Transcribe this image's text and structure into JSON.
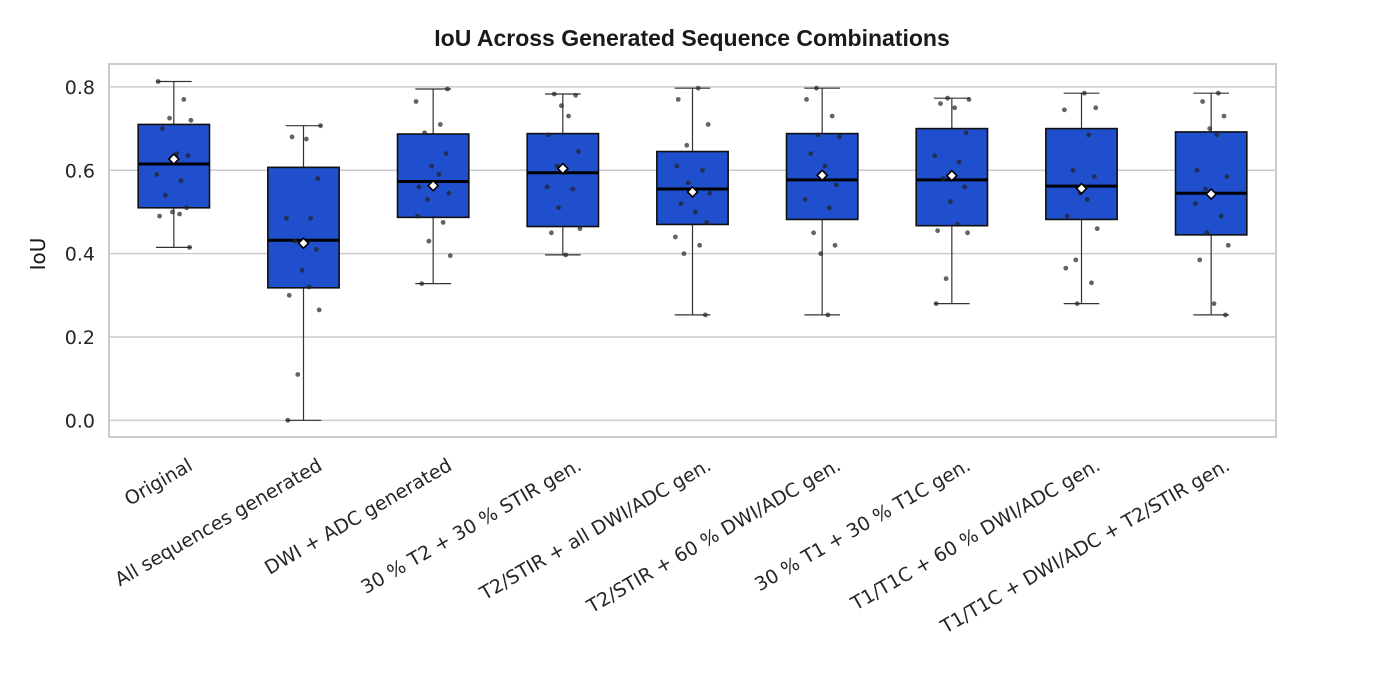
{
  "chart_data": {
    "type": "box",
    "title": "IoU Across Generated Sequence Combinations",
    "xlabel": "",
    "ylabel": "IoU",
    "ylim": [
      -0.04,
      0.855
    ],
    "yticks": [
      0.0,
      0.2,
      0.4,
      0.6,
      0.8
    ],
    "ytick_labels": [
      "0.0",
      "0.2",
      "0.4",
      "0.6",
      "0.8"
    ],
    "grid": true,
    "box_color": "#1f4fcc",
    "categories": [
      "Original",
      "All sequences generated",
      "DWI + ADC generated",
      "30 % T2 + 30 % STIR gen.",
      "T2/STIR + all DWI/ADC gen.",
      "T2/STIR + 60 % DWI/ADC gen.",
      "30 % T1 + 30 % T1C gen.",
      "T1/T1C + 60 % DWI/ADC gen.",
      "T1/T1C + DWI/ADC + T2/STIR gen."
    ],
    "boxes": [
      {
        "min": 0.415,
        "q1": 0.51,
        "median": 0.615,
        "q3": 0.71,
        "max": 0.813,
        "mean": 0.627,
        "points": [
          0.813,
          0.77,
          0.725,
          0.72,
          0.7,
          0.64,
          0.635,
          0.59,
          0.575,
          0.54,
          0.51,
          0.5,
          0.495,
          0.49,
          0.415
        ]
      },
      {
        "min": 0.0,
        "q1": 0.318,
        "median": 0.432,
        "q3": 0.607,
        "max": 0.707,
        "mean": 0.425,
        "points": [
          0.707,
          0.68,
          0.675,
          0.58,
          0.485,
          0.485,
          0.43,
          0.41,
          0.36,
          0.32,
          0.3,
          0.265,
          0.11,
          0.0
        ]
      },
      {
        "min": 0.328,
        "q1": 0.487,
        "median": 0.573,
        "q3": 0.687,
        "max": 0.795,
        "mean": 0.563,
        "points": [
          0.795,
          0.765,
          0.71,
          0.69,
          0.64,
          0.61,
          0.59,
          0.56,
          0.545,
          0.53,
          0.49,
          0.475,
          0.43,
          0.395,
          0.328
        ]
      },
      {
        "min": 0.397,
        "q1": 0.465,
        "median": 0.594,
        "q3": 0.688,
        "max": 0.783,
        "mean": 0.604,
        "points": [
          0.783,
          0.78,
          0.755,
          0.73,
          0.685,
          0.645,
          0.61,
          0.56,
          0.555,
          0.51,
          0.46,
          0.45,
          0.397
        ]
      },
      {
        "min": 0.253,
        "q1": 0.47,
        "median": 0.555,
        "q3": 0.645,
        "max": 0.797,
        "mean": 0.548,
        "points": [
          0.797,
          0.77,
          0.71,
          0.66,
          0.61,
          0.6,
          0.57,
          0.545,
          0.52,
          0.5,
          0.475,
          0.44,
          0.42,
          0.4,
          0.253
        ]
      },
      {
        "min": 0.253,
        "q1": 0.482,
        "median": 0.577,
        "q3": 0.688,
        "max": 0.797,
        "mean": 0.588,
        "points": [
          0.797,
          0.77,
          0.73,
          0.685,
          0.68,
          0.64,
          0.61,
          0.565,
          0.53,
          0.51,
          0.45,
          0.42,
          0.4,
          0.253
        ]
      },
      {
        "min": 0.28,
        "q1": 0.467,
        "median": 0.577,
        "q3": 0.7,
        "max": 0.773,
        "mean": 0.587,
        "points": [
          0.773,
          0.77,
          0.76,
          0.75,
          0.69,
          0.635,
          0.62,
          0.58,
          0.56,
          0.525,
          0.47,
          0.455,
          0.45,
          0.34,
          0.28
        ]
      },
      {
        "min": 0.28,
        "q1": 0.482,
        "median": 0.562,
        "q3": 0.7,
        "max": 0.785,
        "mean": 0.556,
        "points": [
          0.785,
          0.75,
          0.745,
          0.685,
          0.6,
          0.585,
          0.545,
          0.53,
          0.49,
          0.46,
          0.385,
          0.365,
          0.33,
          0.28
        ]
      },
      {
        "min": 0.253,
        "q1": 0.445,
        "median": 0.545,
        "q3": 0.692,
        "max": 0.785,
        "mean": 0.543,
        "points": [
          0.785,
          0.765,
          0.73,
          0.7,
          0.685,
          0.6,
          0.585,
          0.555,
          0.52,
          0.49,
          0.45,
          0.42,
          0.385,
          0.28,
          0.253
        ]
      }
    ]
  }
}
